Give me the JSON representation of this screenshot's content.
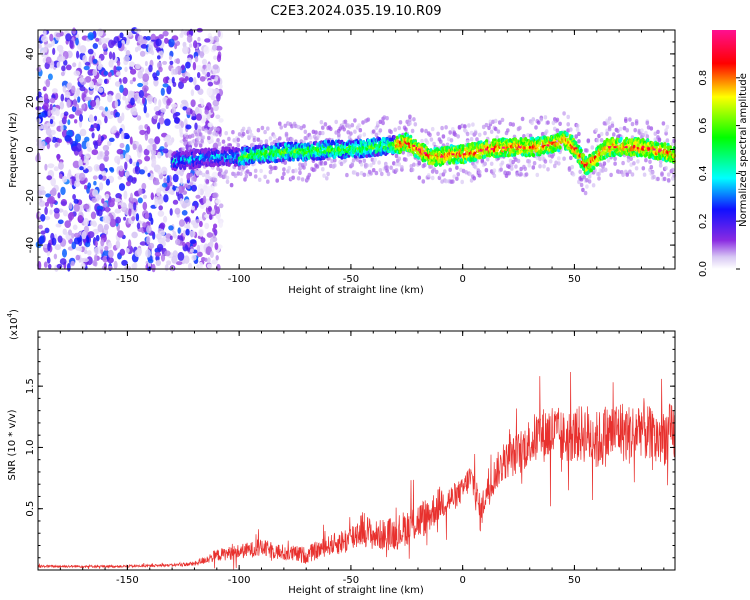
{
  "page": {
    "title": "C2E3.2024.035.19.10.R09"
  },
  "colors": {
    "snr_line": "#e8312e",
    "axis": "#000000",
    "background": "#ffffff"
  },
  "chart_data": [
    {
      "type": "heatmap",
      "title": "C2E3.2024.035.19.10.R09",
      "xlabel": "Height of straight line (km)",
      "ylabel": "Frequency (Hz)",
      "xlim": [
        -190,
        95
      ],
      "ylim": [
        -50,
        50
      ],
      "xticks": [
        -150,
        -100,
        -50,
        0,
        50
      ],
      "yticks": [
        -40,
        -20,
        0,
        20,
        40
      ],
      "colorbar": {
        "label": "Normalized spectral amplitude",
        "range": [
          0,
          1
        ],
        "ticks": [
          "0.0",
          "0.2",
          "0.4",
          "0.6",
          "0.8"
        ],
        "colormap": "rainbow (white/violet at 0 through blue, cyan, green, yellow to red/magenta at 1)"
      },
      "ridge_frequency_track": {
        "x": [
          -130,
          -120,
          -110,
          -100,
          -90,
          -80,
          -70,
          -60,
          -50,
          -40,
          -30,
          -25,
          -20,
          -15,
          -10,
          -5,
          0,
          5,
          10,
          20,
          30,
          40,
          45,
          48,
          52,
          55,
          58,
          60,
          65,
          70,
          80,
          90,
          95
        ],
        "y": [
          -5,
          -4,
          -3,
          -3,
          -2,
          -1,
          -1,
          0,
          0,
          1,
          2,
          3,
          0,
          -3,
          -3,
          -2,
          -2,
          -1,
          0,
          1,
          1,
          2,
          4,
          3,
          -2,
          -7,
          -5,
          -3,
          1,
          1,
          1,
          -1,
          -2
        ]
      },
      "noise_region": {
        "x_range": [
          -190,
          -118
        ],
        "description_level": "scattered low amplitude across full band"
      }
    },
    {
      "type": "line",
      "xlabel": "Height of straight line (km)",
      "ylabel": "SNR (10 * v/v)",
      "y_scale_label": "(x10",
      "y_scale_exponent": "4",
      "xlim": [
        -190,
        95
      ],
      "ylim": [
        0,
        1.95
      ],
      "xticks": [
        -150,
        -100,
        -50,
        0,
        50
      ],
      "yticks": [
        "0.5",
        "1.0",
        "1.5"
      ],
      "series": [
        {
          "x": [
            -190,
            -170,
            -150,
            -130,
            -120,
            -110,
            -100,
            -90,
            -80,
            -70,
            -60,
            -50,
            -45,
            -40,
            -30,
            -25,
            -20,
            -15,
            -10,
            -5,
            0,
            3,
            5,
            8,
            10,
            15,
            20,
            25,
            30,
            35,
            40,
            45,
            50,
            55,
            60,
            65,
            70,
            75,
            80,
            85,
            90,
            95
          ],
          "y": [
            0.03,
            0.03,
            0.03,
            0.04,
            0.05,
            0.12,
            0.15,
            0.18,
            0.14,
            0.12,
            0.2,
            0.25,
            0.35,
            0.28,
            0.3,
            0.35,
            0.4,
            0.45,
            0.55,
            0.58,
            0.65,
            0.75,
            0.7,
            0.45,
            0.6,
            0.8,
            0.9,
            0.95,
            1.05,
            1.1,
            1.12,
            1.08,
            1.1,
            1.12,
            1.05,
            1.1,
            1.15,
            1.1,
            1.18,
            1.05,
            1.1,
            1.12
          ],
          "noise_amplitude": [
            0.01,
            0.01,
            0.01,
            0.01,
            0.02,
            0.05,
            0.06,
            0.07,
            0.07,
            0.07,
            0.08,
            0.12,
            0.15,
            0.12,
            0.14,
            0.15,
            0.16,
            0.15,
            0.14,
            0.12,
            0.1,
            0.12,
            0.15,
            0.15,
            0.12,
            0.15,
            0.15,
            0.18,
            0.2,
            0.22,
            0.25,
            0.22,
            0.22,
            0.25,
            0.25,
            0.25,
            0.25,
            0.25,
            0.25,
            0.25,
            0.25,
            0.25
          ]
        }
      ]
    }
  ]
}
